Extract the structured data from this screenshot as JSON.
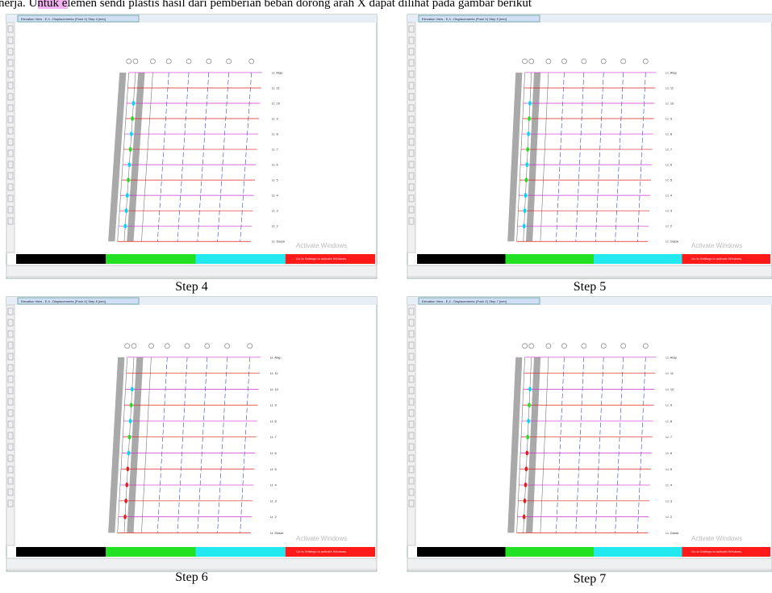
{
  "intro": {
    "prefix": "nerja.",
    "highlight": "Untuk",
    "rest": "elemen sendi plastis hasil dari pemberian beban dorong arah X dapat dilihat pada gambar berikut"
  },
  "story_levels": [
    "Lt. Atap",
    "Lt. 11",
    "Lt. 10",
    "Lt. 9",
    "Lt. 8",
    "Lt. 7",
    "Lt. 6",
    "Lt. 5",
    "Lt. 4",
    "Lt. 3",
    "Lt. 2",
    "Lt. Dasar"
  ],
  "watermark": {
    "title": "Activate Windows",
    "subtitle": "Go to Settings to activate Windows."
  },
  "panels": [
    {
      "title": "Elevation View - E,4 - Displacements (Push X) Step 4 [mm]",
      "caption": "Step 4"
    },
    {
      "title": "Elevation View - E,4 - Displacements (Push X) Step 5 [mm]",
      "caption": "Step 5"
    },
    {
      "title": "Elevation View - E,4 - Displacements (Push X) Step 6 [mm]",
      "caption": "Step 6"
    },
    {
      "title": "Elevation View - E,4 - Displacements (Push X) Step 7 [mm]",
      "caption": "Step 7"
    }
  ]
}
